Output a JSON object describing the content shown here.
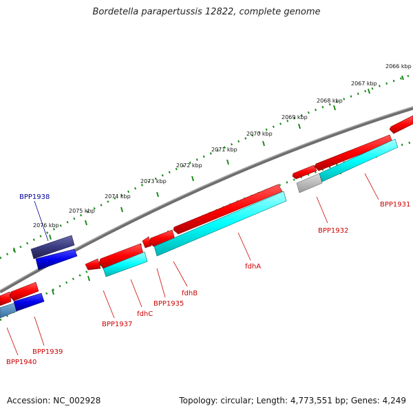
{
  "title": "Bordetella parapertussis 12822, complete genome",
  "footer": {
    "accession": "Accession: NC_002928",
    "summary": "Topology: circular; Length: 4,773,551 bp; Genes: 4,249"
  },
  "scale_labels": [
    "2066 kbp",
    "2067 kbp",
    "2068 kbp",
    "2069 kbp",
    "2070 kbp",
    "2071 kbp",
    "2072 kbp",
    "2073 kbp",
    "2074 kbp",
    "2075 kbp",
    "2076 kbp"
  ],
  "gene_labels": {
    "bpp1938": "BPP1938",
    "bpp1931": "BPP1931",
    "bpp1932": "BPP1932",
    "fdhA": "fdhA",
    "fdhB": "fdhB",
    "bpp1935": "BPP1935",
    "fdhC": "fdhC",
    "bpp1937": "BPP1937",
    "bpp1939": "BPP1939",
    "bpp1940": "BPP1940"
  },
  "colors": {
    "scale_dots": "#1a8a1a",
    "backbone": "#7a7a7a",
    "cds": "#ff0000",
    "match": "#00ffff",
    "dark_feature": "#3a3a80",
    "blue_feature": "#0000ee",
    "gray_feature": "#b8b8b8",
    "label_red": "#cc0000",
    "label_blue": "#000099"
  }
}
